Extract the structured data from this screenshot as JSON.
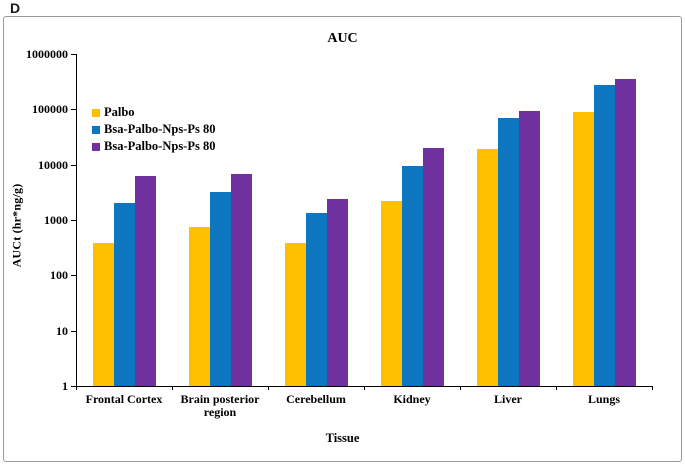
{
  "figure_label": "D",
  "chart_data": {
    "type": "bar",
    "title": "AUC",
    "xlabel": "Tissue",
    "ylabel": "AUCt (hr*ng/g)",
    "y_scale": "log",
    "ylim": [
      1,
      1000000
    ],
    "y_ticks": [
      "1",
      "10",
      "100",
      "1000",
      "10000",
      "100000",
      "1000000"
    ],
    "grid": false,
    "legend_position": "upper-left-inside",
    "categories": [
      "Frontal Cortex",
      "Brain posterior region",
      "Cerebellum",
      "Kidney",
      "Liver",
      "Lungs"
    ],
    "series": [
      {
        "name": "Palbo",
        "color": "#FFC000",
        "values": [
          380,
          750,
          390,
          2200,
          19000,
          90000
        ]
      },
      {
        "name": "Bsa-Palbo-Nps-Ps 80",
        "color": "#0E76C0",
        "values": [
          2000,
          3200,
          1350,
          9500,
          70000,
          270000
        ]
      },
      {
        "name": "Bsa-Palbo-Nps-Ps 80",
        "color": "#7030A0",
        "values": [
          6300,
          6800,
          2400,
          20000,
          95000,
          360000
        ]
      }
    ]
  }
}
